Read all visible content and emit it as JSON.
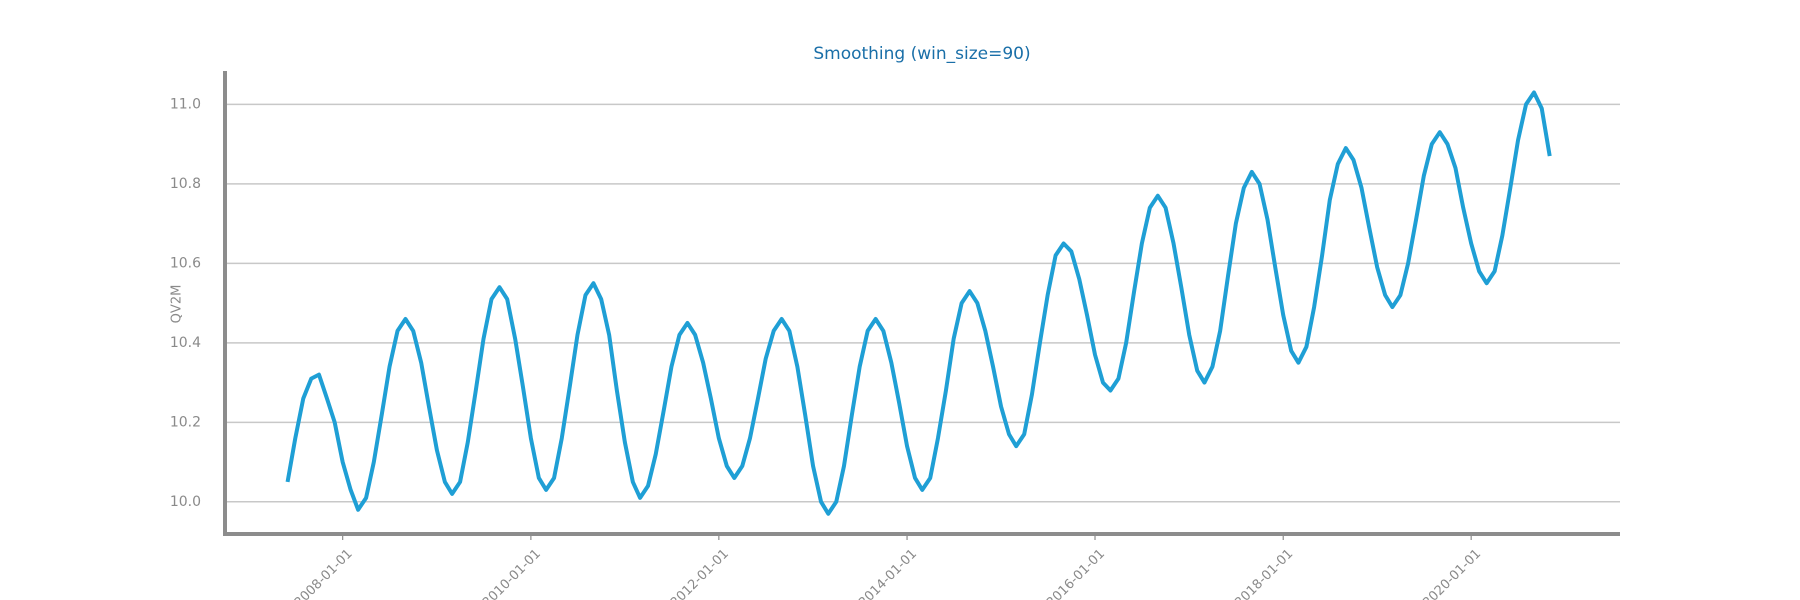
{
  "chart_data": {
    "type": "line",
    "title": "Smoothing (win_size=90)",
    "y_label": "QV2M",
    "color": "#1f9fd5",
    "grid": true,
    "xlim": [
      "2006-10-01",
      "2021-08-01"
    ],
    "xticks": [
      "2008-01-01",
      "2010-01-01",
      "2012-01-01",
      "2014-01-01",
      "2016-01-01",
      "2018-01-01",
      "2020-01-01"
    ],
    "ylim": [
      9.919,
      11.084
    ],
    "yticks": [
      {
        "value": 10.0,
        "label": "10.0"
      },
      10.2,
      10.4,
      10.6,
      10.8,
      {
        "value": 11.0,
        "label": "11.0"
      }
    ],
    "x": [
      "2007-06-01",
      "2007-07-01",
      "2007-08-01",
      "2007-09-01",
      "2007-10-01",
      "2007-11-01",
      "2007-12-01",
      "2008-01-01",
      "2008-02-01",
      "2008-03-01",
      "2008-04-01",
      "2008-05-01",
      "2008-06-01",
      "2008-07-01",
      "2008-08-01",
      "2008-09-01",
      "2008-10-01",
      "2008-11-01",
      "2008-12-01",
      "2009-01-01",
      "2009-02-01",
      "2009-03-01",
      "2009-04-01",
      "2009-05-01",
      "2009-06-01",
      "2009-07-01",
      "2009-08-01",
      "2009-09-01",
      "2009-10-01",
      "2009-11-01",
      "2009-12-01",
      "2010-01-01",
      "2010-02-01",
      "2010-03-01",
      "2010-04-01",
      "2010-05-01",
      "2010-06-01",
      "2010-07-01",
      "2010-08-01",
      "2010-09-01",
      "2010-10-01",
      "2010-11-01",
      "2010-12-01",
      "2011-01-01",
      "2011-02-01",
      "2011-03-01",
      "2011-04-01",
      "2011-05-01",
      "2011-06-01",
      "2011-07-01",
      "2011-08-01",
      "2011-09-01",
      "2011-10-01",
      "2011-11-01",
      "2011-12-01",
      "2012-01-01",
      "2012-02-01",
      "2012-03-01",
      "2012-04-01",
      "2012-05-01",
      "2012-06-01",
      "2012-07-01",
      "2012-08-01",
      "2012-09-01",
      "2012-10-01",
      "2012-11-01",
      "2012-12-01",
      "2013-01-01",
      "2013-02-01",
      "2013-03-01",
      "2013-04-01",
      "2013-05-01",
      "2013-06-01",
      "2013-07-01",
      "2013-08-01",
      "2013-09-01",
      "2013-10-01",
      "2013-11-01",
      "2013-12-01",
      "2014-01-01",
      "2014-02-01",
      "2014-03-01",
      "2014-04-01",
      "2014-05-01",
      "2014-06-01",
      "2014-07-01",
      "2014-08-01",
      "2014-09-01",
      "2014-10-01",
      "2014-11-01",
      "2014-12-01",
      "2015-01-01",
      "2015-02-01",
      "2015-03-01",
      "2015-04-01",
      "2015-05-01",
      "2015-06-01",
      "2015-07-01",
      "2015-08-01",
      "2015-09-01",
      "2015-10-01",
      "2015-11-01",
      "2015-12-01",
      "2016-01-01",
      "2016-02-01",
      "2016-03-01",
      "2016-04-01",
      "2016-05-01",
      "2016-06-01",
      "2016-07-01",
      "2016-08-01",
      "2016-09-01",
      "2016-10-01",
      "2016-11-01",
      "2016-12-01",
      "2017-01-01",
      "2017-02-01",
      "2017-03-01",
      "2017-04-01",
      "2017-05-01",
      "2017-06-01",
      "2017-07-01",
      "2017-08-01",
      "2017-09-01",
      "2017-10-01",
      "2017-11-01",
      "2017-12-01",
      "2018-01-01",
      "2018-02-01",
      "2018-03-01",
      "2018-04-01",
      "2018-05-01",
      "2018-06-01",
      "2018-07-01",
      "2018-08-01",
      "2018-09-01",
      "2018-10-01",
      "2018-11-01",
      "2018-12-01",
      "2019-01-01",
      "2019-02-01",
      "2019-03-01",
      "2019-04-01",
      "2019-05-01",
      "2019-06-01",
      "2019-07-01",
      "2019-08-01",
      "2019-09-01",
      "2019-10-01",
      "2019-11-01",
      "2019-12-01",
      "2020-01-01",
      "2020-02-01",
      "2020-03-01",
      "2020-04-01",
      "2020-05-01",
      "2020-06-01",
      "2020-07-01",
      "2020-08-01",
      "2020-09-01",
      "2020-10-01",
      "2020-11-01"
    ],
    "values": [
      10.05,
      10.16,
      10.26,
      10.31,
      10.32,
      10.26,
      10.2,
      10.1,
      10.03,
      9.98,
      10.01,
      10.1,
      10.22,
      10.34,
      10.43,
      10.46,
      10.43,
      10.35,
      10.24,
      10.13,
      10.05,
      10.02,
      10.05,
      10.15,
      10.28,
      10.41,
      10.51,
      10.54,
      10.51,
      10.41,
      10.29,
      10.16,
      10.06,
      10.03,
      10.06,
      10.16,
      10.29,
      10.42,
      10.52,
      10.55,
      10.51,
      10.42,
      10.28,
      10.15,
      10.05,
      10.01,
      10.04,
      10.12,
      10.23,
      10.34,
      10.42,
      10.45,
      10.42,
      10.35,
      10.26,
      10.16,
      10.09,
      10.06,
      10.09,
      10.16,
      10.26,
      10.36,
      10.43,
      10.46,
      10.43,
      10.34,
      10.22,
      10.09,
      10.0,
      9.97,
      10.0,
      10.09,
      10.22,
      10.34,
      10.43,
      10.46,
      10.43,
      10.35,
      10.25,
      10.14,
      10.06,
      10.03,
      10.06,
      10.16,
      10.28,
      10.41,
      10.5,
      10.53,
      10.5,
      10.43,
      10.34,
      10.24,
      10.17,
      10.14,
      10.17,
      10.27,
      10.4,
      10.52,
      10.62,
      10.65,
      10.63,
      10.56,
      10.47,
      10.37,
      10.3,
      10.28,
      10.31,
      10.4,
      10.53,
      10.65,
      10.74,
      10.77,
      10.74,
      10.65,
      10.54,
      10.42,
      10.33,
      10.3,
      10.34,
      10.43,
      10.57,
      10.7,
      10.79,
      10.83,
      10.8,
      10.71,
      10.59,
      10.47,
      10.38,
      10.35,
      10.39,
      10.49,
      10.62,
      10.76,
      10.85,
      10.89,
      10.86,
      10.79,
      10.69,
      10.59,
      10.52,
      10.49,
      10.52,
      10.6,
      10.71,
      10.82,
      10.9,
      10.93,
      10.9,
      10.84,
      10.74,
      10.65,
      10.58,
      10.55,
      10.58,
      10.67,
      10.79,
      10.91,
      11.0,
      11.03,
      10.99,
      10.87
    ]
  }
}
